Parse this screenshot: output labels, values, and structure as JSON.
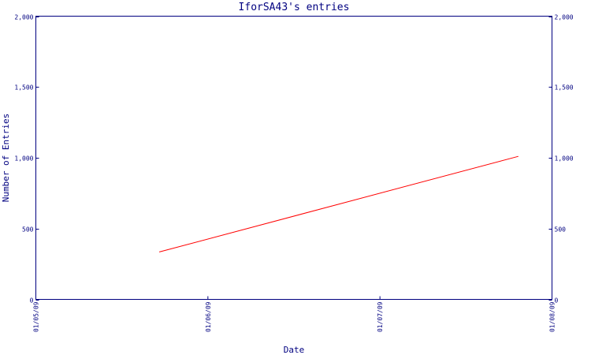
{
  "chart_data": {
    "type": "line",
    "title": "IforSA43's entries",
    "xlabel": "Date",
    "ylabel": "Number of Entries",
    "x_ticks": [
      "01/05/09",
      "01/06/09",
      "01/07/09",
      "01/08/09"
    ],
    "xlim": [
      "2009-05-01",
      "2009-08-01"
    ],
    "y_ticks": [
      "0",
      "500",
      "1,000",
      "1,500",
      "2,000"
    ],
    "ylim": [
      0,
      2000
    ],
    "grid": false,
    "series": [
      {
        "color": "#ff0000",
        "points": [
          {
            "x": "2009-05-23",
            "y": 335
          },
          {
            "x": "2009-07-26",
            "y": 1010
          }
        ]
      }
    ]
  }
}
